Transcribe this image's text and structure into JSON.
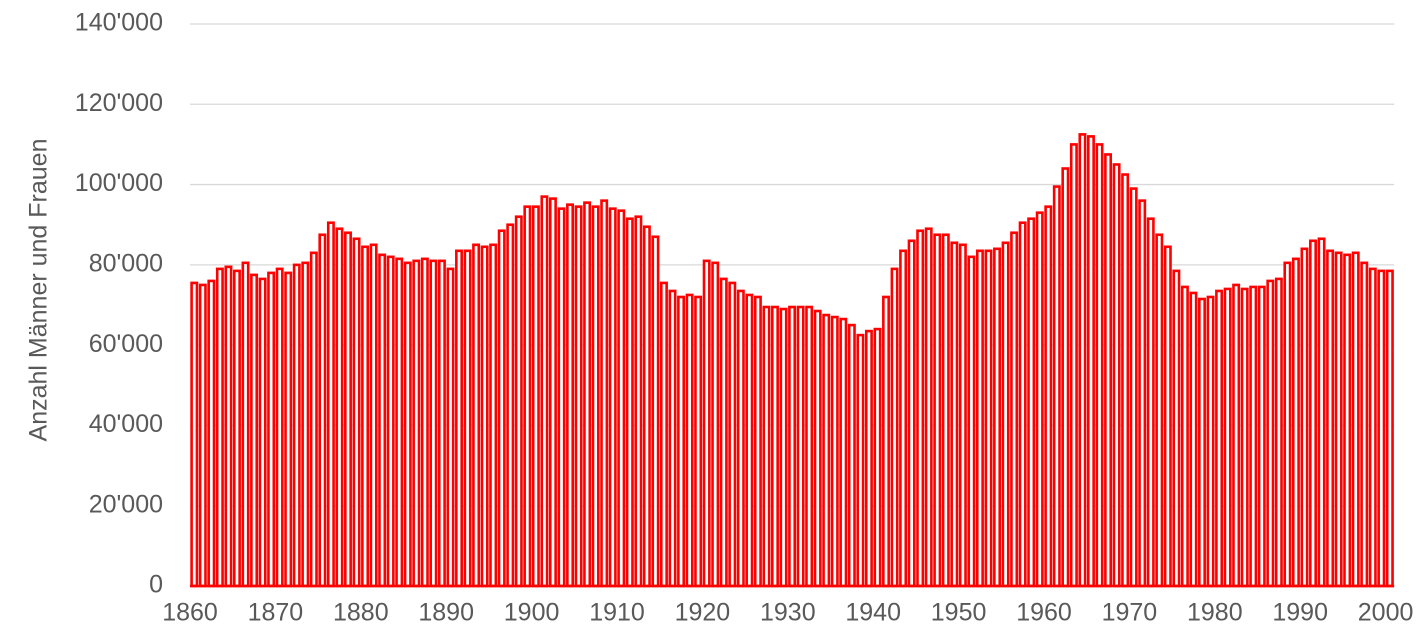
{
  "chart_data": {
    "type": "bar",
    "y_label": "Anzahl Männer und Frauen",
    "categories": [
      "1860",
      null,
      null,
      null,
      null,
      null,
      null,
      null,
      null,
      null,
      "1870",
      null,
      null,
      null,
      null,
      null,
      null,
      null,
      null,
      null,
      "1880",
      null,
      null,
      null,
      null,
      null,
      null,
      null,
      null,
      null,
      "1890",
      null,
      null,
      null,
      null,
      null,
      null,
      null,
      null,
      null,
      "1900",
      null,
      null,
      null,
      null,
      null,
      null,
      null,
      null,
      null,
      "1910",
      null,
      null,
      null,
      null,
      null,
      null,
      null,
      null,
      null,
      "1920",
      null,
      null,
      null,
      null,
      null,
      null,
      null,
      null,
      null,
      "1930",
      null,
      null,
      null,
      null,
      null,
      null,
      null,
      null,
      null,
      "1940",
      null,
      null,
      null,
      null,
      null,
      null,
      null,
      null,
      null,
      "1950",
      null,
      null,
      null,
      null,
      null,
      null,
      null,
      null,
      null,
      "1960",
      null,
      null,
      null,
      null,
      null,
      null,
      null,
      null,
      null,
      "1970",
      null,
      null,
      null,
      null,
      null,
      null,
      null,
      null,
      null,
      "1980",
      null,
      null,
      null,
      null,
      null,
      null,
      null,
      null,
      null,
      "1990",
      null,
      null,
      null,
      null,
      null,
      null,
      null,
      null,
      null,
      "2000"
    ],
    "values": [
      75500,
      75000,
      76000,
      79000,
      79500,
      78500,
      80500,
      77500,
      76500,
      78000,
      79000,
      78000,
      80000,
      80500,
      83000,
      87500,
      90500,
      89000,
      88000,
      86500,
      84500,
      85000,
      82500,
      82000,
      81500,
      80500,
      81000,
      81500,
      81000,
      81000,
      79000,
      83500,
      83500,
      85000,
      84500,
      85000,
      88500,
      90000,
      92000,
      94500,
      94500,
      97000,
      96500,
      94000,
      95000,
      94500,
      95500,
      94500,
      96000,
      94000,
      93500,
      91500,
      92000,
      89500,
      87000,
      75500,
      73500,
      72000,
      72500,
      72000,
      81000,
      80500,
      76500,
      75500,
      73500,
      72500,
      72000,
      69500,
      69500,
      69000,
      69500,
      69500,
      69500,
      68500,
      67500,
      67000,
      66500,
      65000,
      62500,
      63500,
      64000,
      72000,
      79000,
      83500,
      86000,
      88500,
      89000,
      87500,
      87500,
      85500,
      85000,
      82000,
      83500,
      83500,
      84000,
      85500,
      88000,
      90500,
      91500,
      93000,
      94500,
      99500,
      104000,
      110000,
      112500,
      112000,
      110000,
      107500,
      105000,
      102500,
      99000,
      96000,
      91500,
      87500,
      84500,
      78500,
      74500,
      73000,
      71500,
      72000,
      73500,
      74000,
      75000,
      74000,
      74500,
      74500,
      76000,
      76500,
      80500,
      81500,
      84000,
      86000,
      86500,
      83500,
      83000,
      82500,
      83000,
      80500,
      79000,
      78500,
      78500
    ],
    "color": "#ff0000",
    "ylim": [
      0,
      140000
    ],
    "yticks": [
      0,
      {
        "value": 20000,
        "label": "20'000"
      },
      {
        "value": 40000,
        "label": "40'000"
      },
      {
        "value": 60000,
        "label": "60'000"
      },
      {
        "value": 80000,
        "label": "80'000"
      },
      {
        "value": 100000,
        "label": "100'000"
      },
      {
        "value": 120000,
        "label": "120'000"
      },
      {
        "value": 140000,
        "label": "140'000"
      }
    ],
    "grid": true
  }
}
